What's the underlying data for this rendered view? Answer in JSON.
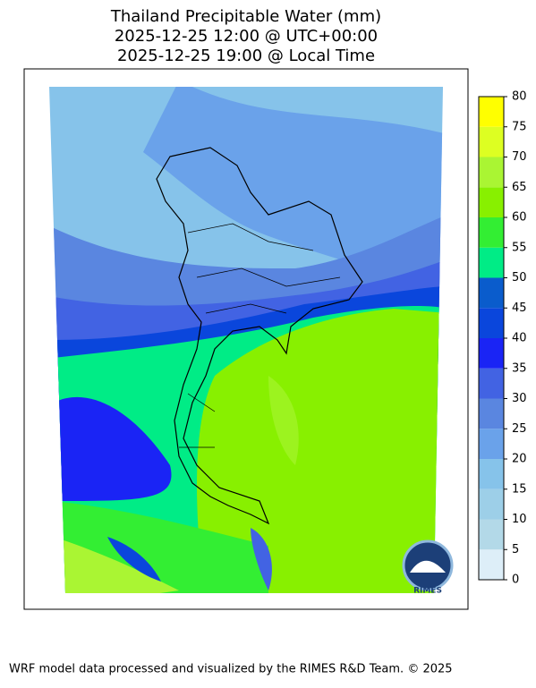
{
  "title": [
    "Thailand Precipitable Water (mm)",
    "2025-12-25 12:00 @ UTC+00:00",
    "2025-12-25 19:00 @ Local Time"
  ],
  "colorbar": {
    "lim": [
      0,
      80
    ],
    "ticks": [
      0,
      5,
      10,
      15,
      20,
      25,
      30,
      35,
      40,
      45,
      50,
      55,
      60,
      65,
      70,
      75,
      80
    ],
    "colors": [
      "#ddeef8",
      "#b3d9e8",
      "#9dcfe8",
      "#86c3ea",
      "#6aa2ea",
      "#5a86e0",
      "#4263e3",
      "#1a24f5",
      "#0a46dc",
      "#0a5ccc",
      "#00ec86",
      "#33ee33",
      "#88f000",
      "#aaf533",
      "#ddff22",
      "#ffff00"
    ]
  },
  "logo": "RIMES",
  "footer": "WRF model data processed and visualized by the RIMES R&D Team. © 2025"
}
